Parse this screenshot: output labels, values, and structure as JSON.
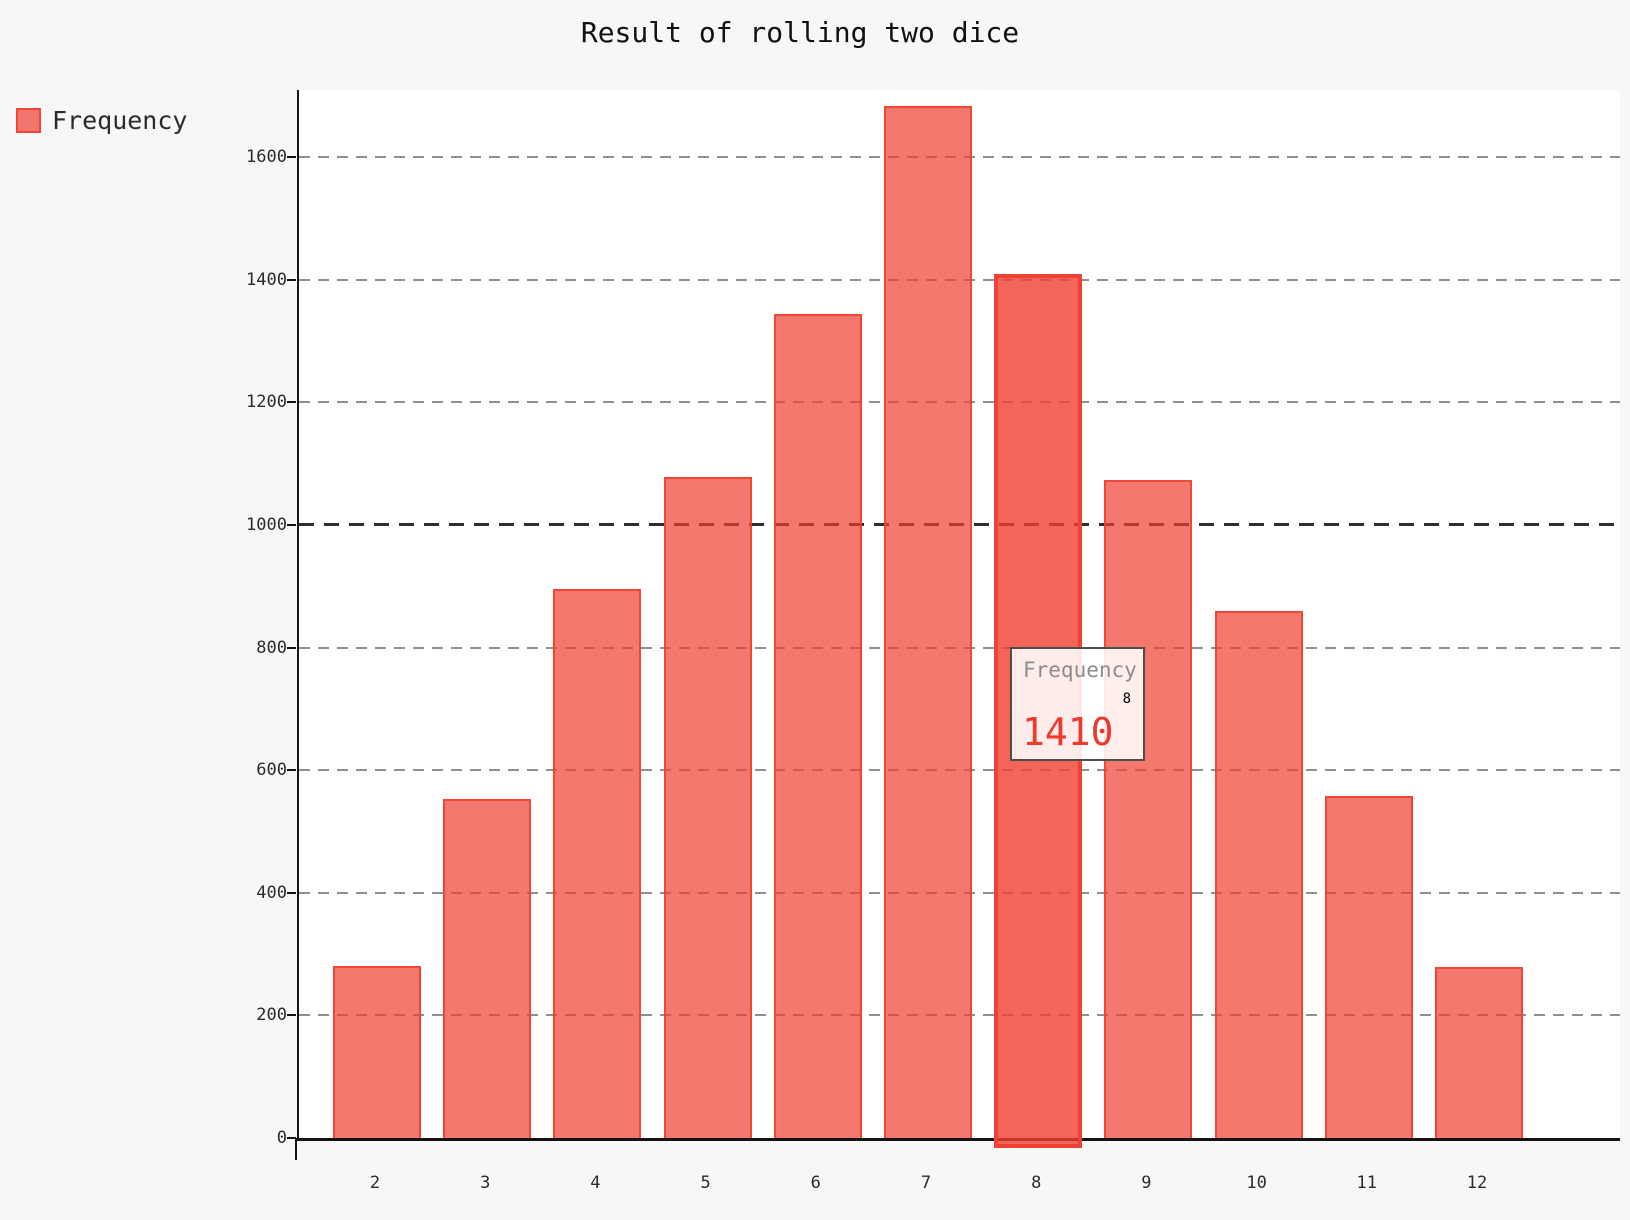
{
  "title": "Result of rolling two dice",
  "legend": {
    "label": "Frequency"
  },
  "tooltip": {
    "series": "Frequency",
    "category": "8",
    "value": "1410"
  },
  "colors": {
    "bg": "#f7f7f7",
    "plot_bg": "#ffffff",
    "axis": "#141414",
    "text": "#2b2b2b",
    "grid": "#8f8f8f",
    "grid_emphasis": "#2e2e2e",
    "bar_fill": "rgba(240,62,48,0.70)",
    "bar_border": "rgba(240,62,48,0.87)",
    "bar_fill_active": "rgba(240,62,48,0.80)",
    "bar_border_active": "#ee4334",
    "tooltip_border": "#4d4d4d",
    "tooltip_bg": "rgba(255,255,255,0.88)",
    "tooltip_label": "#8c8c8c",
    "tooltip_value": "#f0392b"
  },
  "chart_data": {
    "type": "bar",
    "title": "Result of rolling two dice",
    "series_name": "Frequency",
    "categories": [
      "2",
      "3",
      "4",
      "5",
      "6",
      "7",
      "8",
      "9",
      "10",
      "11",
      "12"
    ],
    "values": [
      280,
      553,
      895,
      1078,
      1345,
      1683,
      1410,
      1073,
      860,
      558,
      279
    ],
    "xlabel": "",
    "ylabel": "",
    "ylim": [
      0,
      1710
    ],
    "yticks": [
      0,
      200,
      400,
      600,
      800,
      1000,
      1200,
      1400,
      1600
    ],
    "emphasized_gridline": 1000,
    "grid": "horizontal-dashed",
    "legend_position": "top-left",
    "highlighted_index": 6,
    "highlighted_category": "8",
    "highlighted_value": 1410,
    "tooltip_visible": true
  }
}
